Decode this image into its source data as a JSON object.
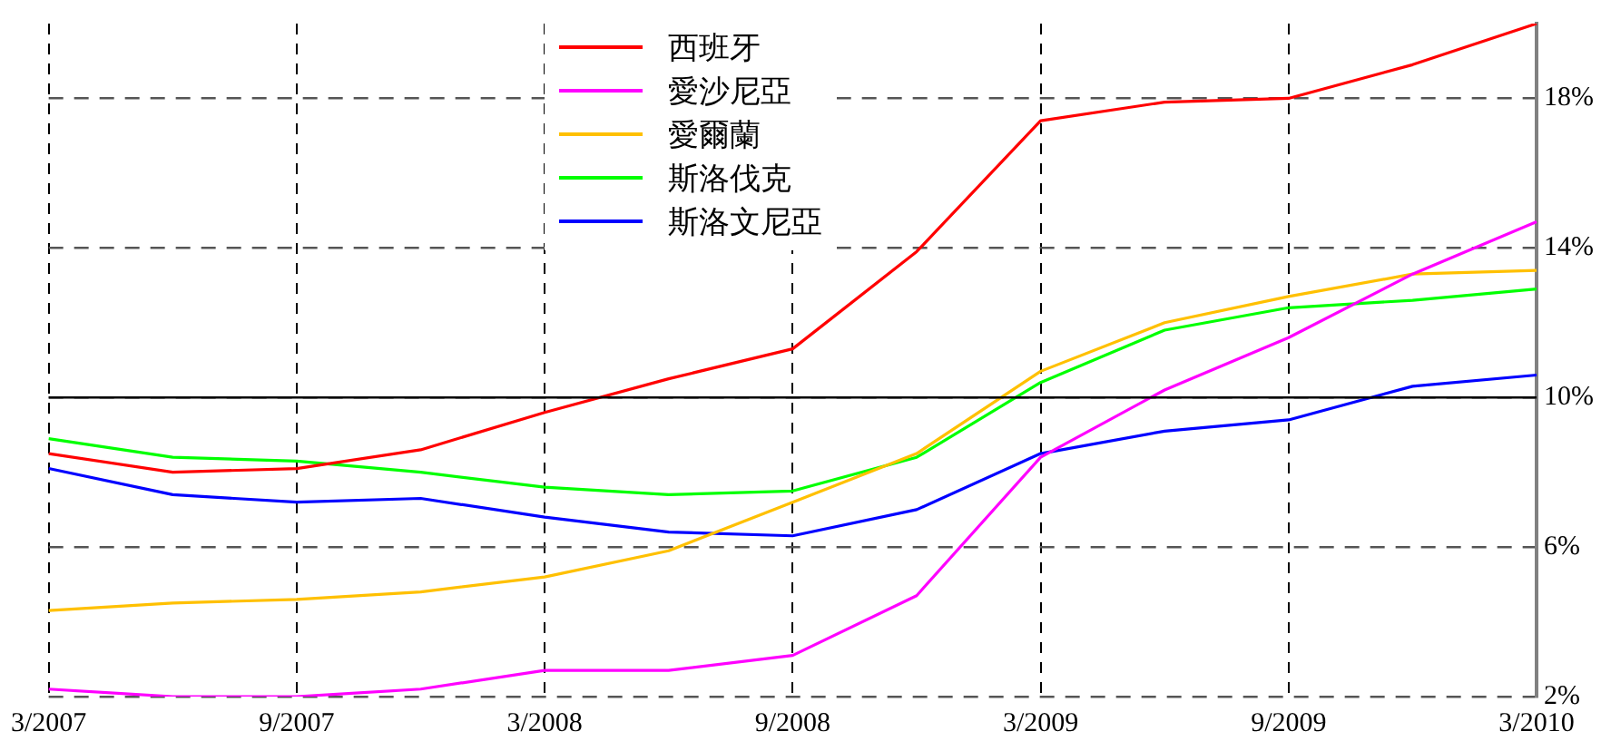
{
  "chart_data": {
    "type": "line",
    "categories": [
      "3/2007",
      null,
      "9/2007",
      null,
      "3/2008",
      null,
      "9/2008",
      null,
      "3/2009",
      null,
      "9/2009",
      null,
      "3/2010"
    ],
    "series": [
      {
        "name": "西班牙",
        "color": "#ff0000",
        "values": [
          8.5,
          8.0,
          8.1,
          8.6,
          9.6,
          10.5,
          11.3,
          13.9,
          17.4,
          17.9,
          18.0,
          18.9,
          20.0
        ]
      },
      {
        "name": "愛沙尼亞",
        "color": "#ff00ff",
        "values": [
          2.2,
          2.0,
          2.0,
          2.2,
          2.7,
          2.7,
          3.1,
          4.7,
          8.4,
          10.2,
          11.6,
          13.3,
          14.7
        ]
      },
      {
        "name": "愛爾蘭",
        "color": "#ffc000",
        "values": [
          4.3,
          4.5,
          4.6,
          4.8,
          5.2,
          5.9,
          7.2,
          8.5,
          10.7,
          12.0,
          12.7,
          13.3,
          13.4
        ]
      },
      {
        "name": "斯洛伐克",
        "color": "#00ff00",
        "values": [
          8.9,
          8.4,
          8.3,
          8.0,
          7.6,
          7.4,
          7.5,
          8.4,
          10.4,
          11.8,
          12.4,
          12.6,
          12.9
        ]
      },
      {
        "name": "斯洛文尼亞",
        "color": "#0000ff",
        "values": [
          8.1,
          7.4,
          7.2,
          7.3,
          6.8,
          6.4,
          6.3,
          7.0,
          8.5,
          9.1,
          9.4,
          10.3,
          10.6
        ]
      }
    ],
    "ylim": [
      2,
      20
    ],
    "yticks": [
      {
        "value": 2,
        "label": "2%"
      },
      {
        "value": 6,
        "label": "6%"
      },
      {
        "value": 10,
        "label": "10%"
      },
      {
        "value": 14,
        "label": "14%"
      },
      {
        "value": 18,
        "label": "18%"
      }
    ],
    "ref_lines": [
      {
        "axis": "y",
        "value": 10,
        "color": "#000000"
      }
    ],
    "grid": true,
    "legend": "top",
    "marker": "none",
    "line_style": "solid"
  }
}
